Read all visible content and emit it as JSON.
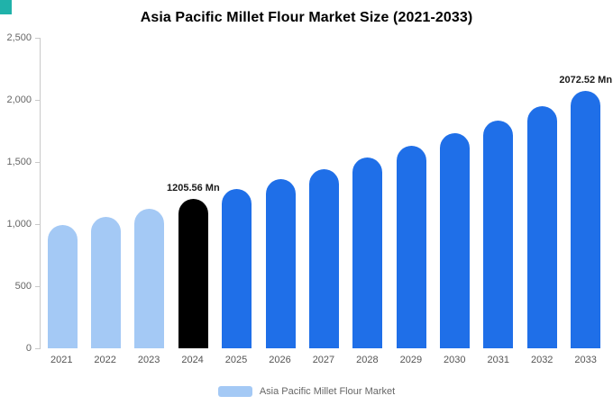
{
  "page": {
    "corner_accent_color": "#20B2AA"
  },
  "chart_data": {
    "type": "bar",
    "title": "Asia Pacific Millet Flour Market Size (2021-2033)",
    "unit": "Mn",
    "categories": [
      "2021",
      "2022",
      "2023",
      "2024",
      "2025",
      "2026",
      "2027",
      "2028",
      "2029",
      "2030",
      "2031",
      "2032",
      "2033"
    ],
    "values": [
      995,
      1057,
      1122,
      1205.56,
      1280,
      1360,
      1444,
      1534,
      1629,
      1730,
      1837,
      1951,
      2072.52
    ],
    "ylim": [
      0,
      2500
    ],
    "y_ticks": [
      "2,500",
      "2,000",
      "1,500",
      "1,000",
      "500",
      "0"
    ],
    "grid": "off",
    "legend_position": "bottom",
    "data_labels": [
      {
        "index": 3,
        "text": "1205.56 Mn"
      },
      {
        "index": 12,
        "text": "2072.52 Mn"
      }
    ],
    "colors": {
      "historical": "#A4C9F5",
      "base_year": "#000000",
      "forecast": "#1F6FE8"
    },
    "bar_colors": [
      "#A4C9F5",
      "#A4C9F5",
      "#A4C9F5",
      "#000000",
      "#1F6FE8",
      "#1F6FE8",
      "#1F6FE8",
      "#1F6FE8",
      "#1F6FE8",
      "#1F6FE8",
      "#1F6FE8",
      "#1F6FE8",
      "#1F6FE8"
    ],
    "legend": [
      {
        "label": "Asia Pacific Millet Flour Market",
        "color": "#A4C9F5"
      }
    ]
  }
}
